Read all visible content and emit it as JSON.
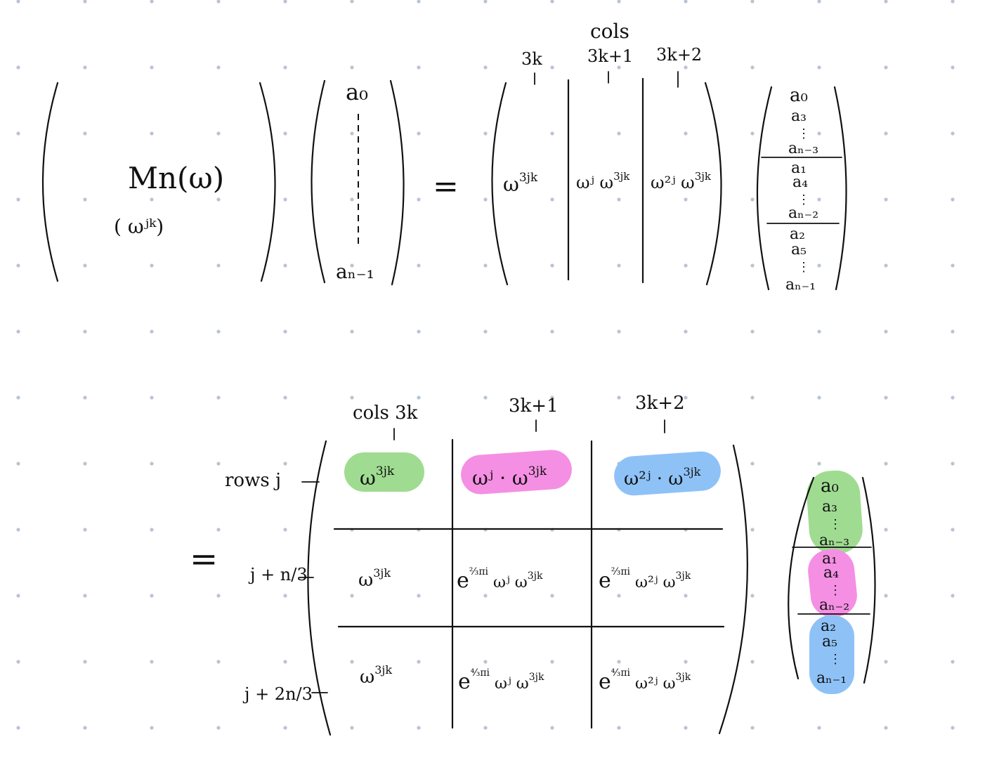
{
  "colors": {
    "background": "#ffffff",
    "dot_grid": "#b9c4d3",
    "ink": "#111111",
    "highlight_green": "#9fdc91",
    "highlight_pink": "#f58fe3",
    "highlight_blue": "#8ec2f7"
  },
  "top": {
    "matrix": {
      "name": "Mn(ω)",
      "entry": "( ωʲᵏ)"
    },
    "input_vector": {
      "first": "a₀",
      "last": "aₙ₋₁"
    },
    "equals": "=",
    "cols_header": "cols",
    "col_labels": [
      "3k",
      "3k+1",
      "3k+2"
    ],
    "cells": [
      {
        "base": "ω",
        "sup": "3jk"
      },
      {
        "base": "ωʲ ω",
        "sup": "3jk"
      },
      {
        "base": "ω²ʲ ω",
        "sup": "3jk"
      }
    ],
    "perm_vector": {
      "group1": [
        "a₀",
        "a₃",
        "⋮",
        "aₙ₋₃"
      ],
      "group2": [
        "a₁",
        "a₄",
        "⋮",
        "aₙ₋₂"
      ],
      "group3": [
        "a₂",
        "a₅",
        "⋮",
        "aₙ₋₁"
      ]
    }
  },
  "bottom": {
    "equals": "=",
    "col_labels": [
      "cols 3k",
      "3k+1",
      "3k+2"
    ],
    "row_labels": [
      "rows j",
      "j + n/3",
      "j + 2n/3"
    ],
    "grid": [
      [
        {
          "base": "ω",
          "sup": "3jk"
        },
        {
          "base": "ωʲ · ω",
          "sup": "3jk"
        },
        {
          "base": "ω²ʲ · ω",
          "sup": "3jk"
        }
      ],
      [
        {
          "base": "ω",
          "sup": "3jk"
        },
        {
          "pre": "e",
          "pre_sup": "⅔πi",
          "base": " ωʲ ω",
          "sup": "3jk"
        },
        {
          "pre": "e",
          "pre_sup": "⅔πi",
          "base": " ω²ʲ ω",
          "sup": "3jk"
        }
      ],
      [
        {
          "base": "ω",
          "sup": "3jk"
        },
        {
          "pre": "e",
          "pre_sup": "⁴⁄₃πi",
          "base": " ωʲ ω",
          "sup": "3jk"
        },
        {
          "pre": "e",
          "pre_sup": "⁴⁄₃πi",
          "base": " ω²ʲ ω",
          "sup": "3jk"
        }
      ]
    ],
    "perm_vector": {
      "group1": [
        "a₀",
        "a₃",
        "⋮",
        "aₙ₋₃"
      ],
      "group2": [
        "a₁",
        "a₄",
        "⋮",
        "aₙ₋₂"
      ],
      "group3": [
        "a₂",
        "a₅",
        "⋮",
        "aₙ₋₁"
      ]
    }
  }
}
